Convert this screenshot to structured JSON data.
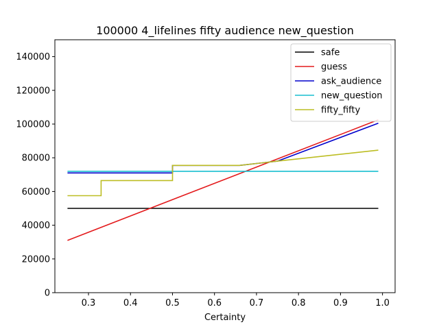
{
  "chart_data": {
    "type": "line",
    "title": "100000 4_lifelines fifty audience new_question",
    "xlabel": "Certainty",
    "ylabel": "",
    "xlim": [
      0.22,
      1.03
    ],
    "ylim": [
      0,
      150000
    ],
    "xticks": [
      0.3,
      0.4,
      0.5,
      0.6,
      0.7,
      0.8,
      0.9,
      1.0
    ],
    "xtick_labels": [
      "0.3",
      "0.4",
      "0.5",
      "0.6",
      "0.7",
      "0.8",
      "0.9",
      "1.0"
    ],
    "yticks": [
      0,
      20000,
      40000,
      60000,
      80000,
      100000,
      120000,
      140000
    ],
    "ytick_labels": [
      "0",
      "20000",
      "40000",
      "60000",
      "80000",
      "100000",
      "120000",
      "140000"
    ],
    "grid": false,
    "legend_position": "top-right",
    "series": [
      {
        "name": "safe",
        "color": "#000000",
        "points": [
          [
            0.25,
            50000
          ],
          [
            0.99,
            50000
          ]
        ]
      },
      {
        "name": "guess",
        "color": "#e31a1c",
        "points": [
          [
            0.25,
            31000
          ],
          [
            0.99,
            102500
          ]
        ]
      },
      {
        "name": "ask_audience",
        "color": "#0000cc",
        "points": [
          [
            0.25,
            71000
          ],
          [
            0.5,
            71000
          ],
          [
            0.5,
            75500
          ],
          [
            0.66,
            75500
          ],
          [
            0.75,
            78000
          ],
          [
            0.99,
            100500
          ]
        ]
      },
      {
        "name": "new_question",
        "color": "#17becf",
        "points": [
          [
            0.25,
            72000
          ],
          [
            0.99,
            72000
          ]
        ]
      },
      {
        "name": "fifty_fifty",
        "color": "#bcbd22",
        "points": [
          [
            0.25,
            57500
          ],
          [
            0.33,
            57500
          ],
          [
            0.33,
            66500
          ],
          [
            0.5,
            66500
          ],
          [
            0.5,
            75500
          ],
          [
            0.66,
            75500
          ],
          [
            0.75,
            78000
          ],
          [
            0.99,
            84500
          ]
        ]
      }
    ]
  }
}
